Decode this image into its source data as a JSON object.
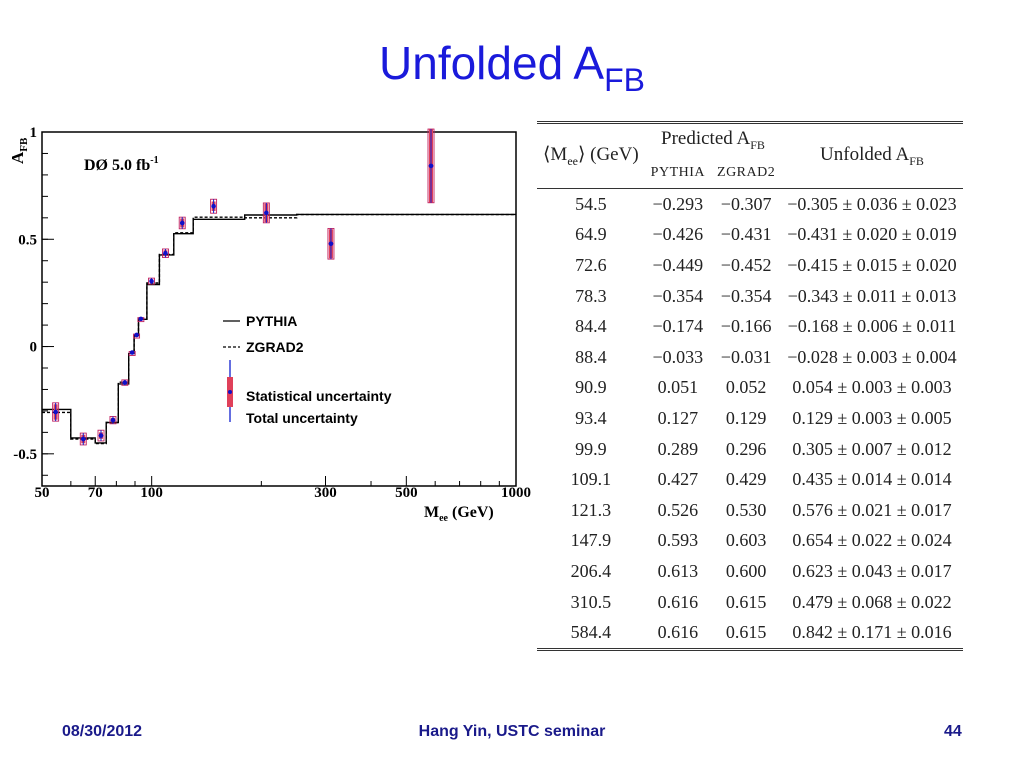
{
  "slide": {
    "title_main": "Unfolded A",
    "title_sub": "FB",
    "footer_date": "08/30/2012",
    "footer_center": "Hang Yin, USTC seminar",
    "footer_page": "44"
  },
  "chart_data": {
    "type": "scatter",
    "annotation": "DØ 5.0 fb",
    "annotation_sup": "-1",
    "ylabel": "A",
    "ylabel_sub": "FB",
    "xlabel": "M",
    "xlabel_sub": "ee",
    "xlabel_unit": "(GeV)",
    "x_scale": "log",
    "xlim": [
      50,
      1000
    ],
    "ylim": [
      -0.65,
      1.0
    ],
    "x_ticks": [
      {
        "value": 50,
        "label": "50"
      },
      {
        "value": 70,
        "label": "70"
      },
      {
        "value": 100,
        "label": "100"
      },
      {
        "value": 300,
        "label": "300"
      },
      {
        "value": 500,
        "label": "500"
      },
      {
        "value": 1000,
        "label": "1000"
      }
    ],
    "y_ticks": [
      {
        "value": 1,
        "label": "1"
      },
      {
        "value": 0.5,
        "label": "0.5"
      },
      {
        "value": 0,
        "label": "0"
      },
      {
        "value": -0.5,
        "label": "-0.5"
      }
    ],
    "bin_edges": [
      50,
      60,
      70,
      75,
      81,
      86.5,
      89.5,
      92,
      97,
      105,
      115,
      130,
      180,
      250,
      400,
      1000
    ],
    "series": [
      {
        "name": "PYTHIA",
        "style": "solid",
        "legend_symbol": "—",
        "values": [
          -0.293,
          -0.426,
          -0.449,
          -0.354,
          -0.174,
          -0.033,
          0.051,
          0.127,
          0.289,
          0.427,
          0.526,
          0.593,
          0.613,
          0.616,
          0.616
        ]
      },
      {
        "name": "ZGRAD2",
        "style": "dashed",
        "legend_symbol": "---",
        "values": [
          -0.307,
          -0.431,
          -0.452,
          -0.354,
          -0.166,
          -0.031,
          0.052,
          0.129,
          0.296,
          0.429,
          0.53,
          0.603,
          0.6,
          0.615,
          0.615
        ]
      }
    ],
    "data": {
      "x": [
        54.5,
        64.9,
        72.6,
        78.3,
        84.4,
        88.4,
        90.9,
        93.4,
        99.9,
        109.1,
        121.3,
        147.9,
        206.4,
        310.5,
        584.4
      ],
      "y": [
        -0.305,
        -0.431,
        -0.415,
        -0.343,
        -0.168,
        -0.028,
        0.054,
        0.129,
        0.305,
        0.435,
        0.576,
        0.654,
        0.623,
        0.479,
        0.842
      ],
      "stat": [
        0.036,
        0.02,
        0.015,
        0.011,
        0.006,
        0.003,
        0.003,
        0.003,
        0.007,
        0.014,
        0.021,
        0.022,
        0.043,
        0.068,
        0.171
      ],
      "syst": [
        0.023,
        0.019,
        0.02,
        0.013,
        0.011,
        0.004,
        0.003,
        0.005,
        0.012,
        0.014,
        0.017,
        0.024,
        0.017,
        0.022,
        0.016
      ]
    },
    "legend_items": [
      {
        "label": "Statistical uncertainty"
      },
      {
        "label": "Total uncertainty"
      }
    ],
    "colors": {
      "point": "#1010c8",
      "stat_band": "#e0405a",
      "total_line": "#1020d0",
      "axes": "#000000"
    }
  },
  "table": {
    "header": {
      "col1": "⟨M",
      "col1_sub": "ee",
      "col1_tail": "⟩ (GeV)",
      "predicted_label": "Predicted A",
      "predicted_sub": "FB",
      "pythia": "PYTHIA",
      "zgrad": "ZGRAD2",
      "unfolded_label": "Unfolded A",
      "unfolded_sub": "FB"
    },
    "rows": [
      [
        "54.5",
        "−0.293",
        "−0.307",
        "−0.305 ± 0.036 ± 0.023"
      ],
      [
        "64.9",
        "−0.426",
        "−0.431",
        "−0.431 ± 0.020 ± 0.019"
      ],
      [
        "72.6",
        "−0.449",
        "−0.452",
        "−0.415 ± 0.015 ± 0.020"
      ],
      [
        "78.3",
        "−0.354",
        "−0.354",
        "−0.343 ± 0.011 ± 0.013"
      ],
      [
        "84.4",
        "−0.174",
        "−0.166",
        "−0.168 ± 0.006 ± 0.011"
      ],
      [
        "88.4",
        "−0.033",
        "−0.031",
        "−0.028 ± 0.003 ± 0.004"
      ],
      [
        "90.9",
        "0.051",
        "0.052",
        "0.054 ± 0.003 ± 0.003"
      ],
      [
        "93.4",
        "0.127",
        "0.129",
        "0.129 ± 0.003 ± 0.005"
      ],
      [
        "99.9",
        "0.289",
        "0.296",
        "0.305 ± 0.007 ± 0.012"
      ],
      [
        "109.1",
        "0.427",
        "0.429",
        "0.435 ± 0.014 ± 0.014"
      ],
      [
        "121.3",
        "0.526",
        "0.530",
        "0.576 ± 0.021 ± 0.017"
      ],
      [
        "147.9",
        "0.593",
        "0.603",
        "0.654 ± 0.022 ± 0.024"
      ],
      [
        "206.4",
        "0.613",
        "0.600",
        "0.623 ± 0.043 ± 0.017"
      ],
      [
        "310.5",
        "0.616",
        "0.615",
        "0.479 ± 0.068 ± 0.022"
      ],
      [
        "584.4",
        "0.616",
        "0.615",
        "0.842 ± 0.171 ± 0.016"
      ]
    ]
  }
}
